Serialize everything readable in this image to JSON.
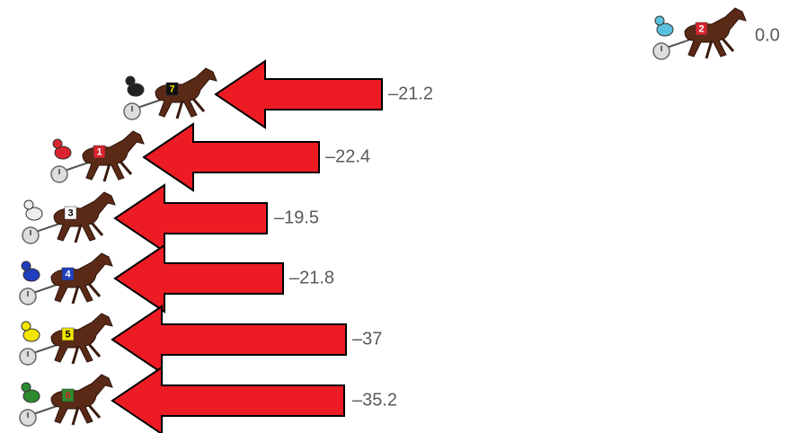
{
  "entries": [
    {
      "number": "2",
      "change": "0.0"
    },
    {
      "number": "7",
      "change": "–21.2"
    },
    {
      "number": "1",
      "change": "–22.4"
    },
    {
      "number": "3",
      "change": "–19.5"
    },
    {
      "number": "4",
      "change": "–21.8"
    },
    {
      "number": "5",
      "change": "–37"
    },
    {
      "number": "6",
      "change": "–35.2"
    }
  ]
}
